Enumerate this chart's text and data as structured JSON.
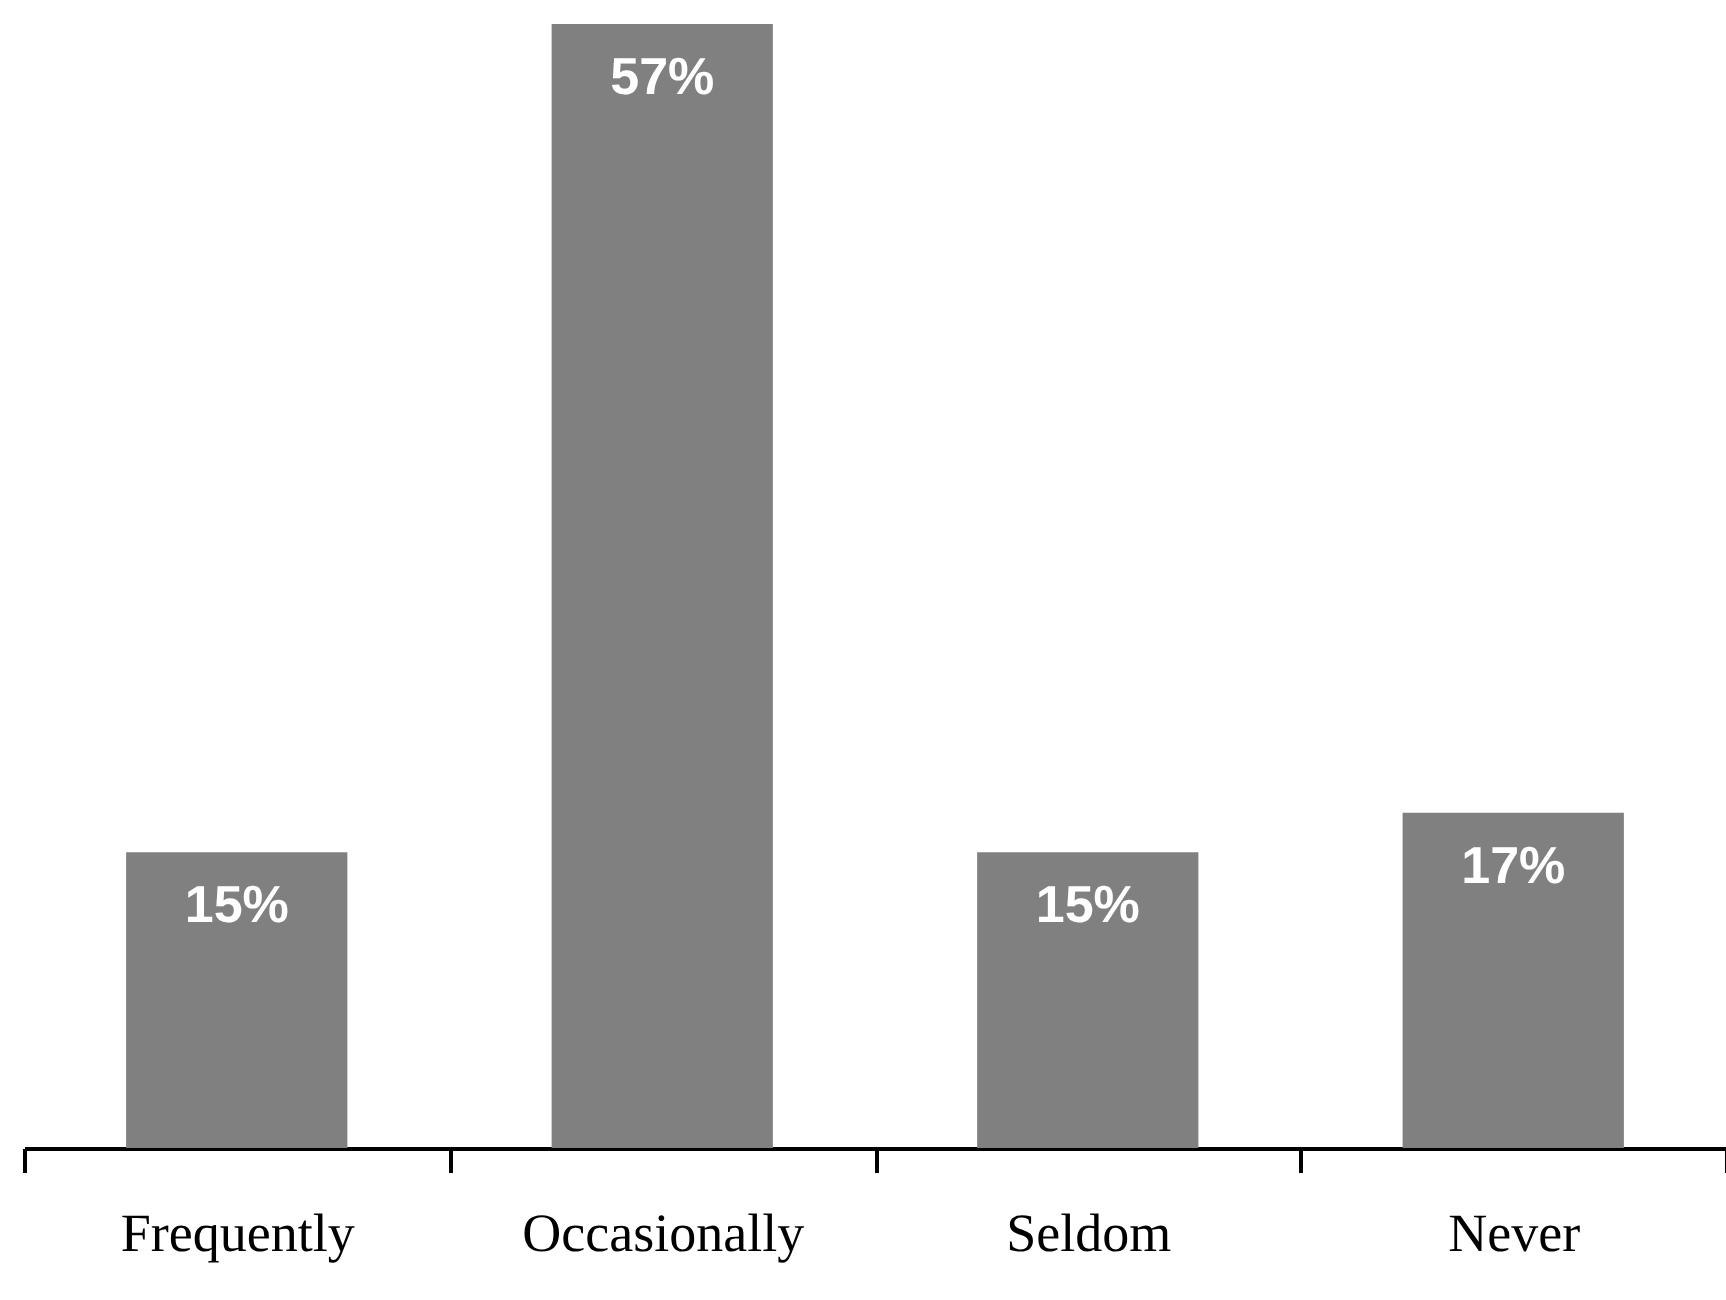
{
  "chart_data": {
    "type": "bar",
    "categories": [
      "Frequently",
      "Occasionally",
      "Seldom",
      "Never"
    ],
    "values": [
      15,
      57,
      15,
      17
    ],
    "value_labels": [
      "15%",
      "57%",
      "15%",
      "17%"
    ],
    "color": "#808080",
    "grid": false
  }
}
